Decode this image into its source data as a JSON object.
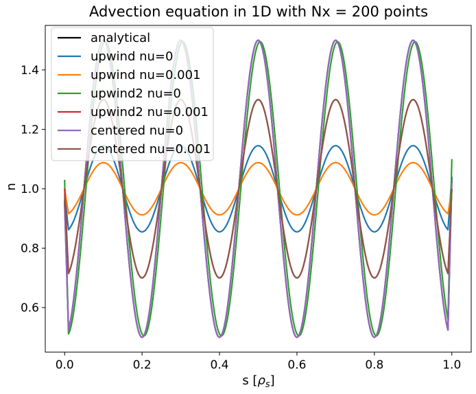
{
  "chart_data": {
    "type": "line",
    "title": "Advection equation in 1D with Nx = 200 points",
    "xlabel_main": "s [",
    "xlabel_symbol": "ρ",
    "xlabel_sub": "s",
    "xlabel_end": "]",
    "ylabel": "n",
    "xlim": [
      -0.05,
      1.05
    ],
    "ylim": [
      0.45,
      1.55
    ],
    "xticks": [
      0.0,
      0.2,
      0.4,
      0.6,
      0.8,
      1.0
    ],
    "xtick_labels": [
      "0.0",
      "0.2",
      "0.4",
      "0.6",
      "0.8",
      "1.0"
    ],
    "yticks": [
      0.6,
      0.8,
      1.0,
      1.2,
      1.4
    ],
    "ytick_labels": [
      "0.6",
      "0.8",
      "1.0",
      "1.2",
      "1.4"
    ],
    "legend_position": "upper-left",
    "wave": {
      "x_start": 0.0,
      "x_end": 1.0,
      "wavelength": 0.2,
      "mean": 1.0
    },
    "series": [
      {
        "name": "analytical",
        "color": "#000000",
        "amplitude": 0.5,
        "phase": 0.0,
        "y_start": 0.96,
        "y_end": 1.04
      },
      {
        "name": "upwind nu=0",
        "color": "#1f77b4",
        "amplitude": 0.145,
        "phase": 0.0,
        "y_start": 0.98,
        "y_end": 1.04
      },
      {
        "name": "upwind nu=0.001",
        "color": "#ff7f0e",
        "amplitude": 0.088,
        "phase": 0.0,
        "y_start": 1.0,
        "y_end": 1.0
      },
      {
        "name": "upwind2 nu=0",
        "color": "#2ca02c",
        "amplitude": 0.495,
        "phase": 0.005,
        "y_start": 1.03,
        "y_end": 1.1
      },
      {
        "name": "upwind2 nu=0.001",
        "color": "#d62728",
        "amplitude": 0.3,
        "phase": 0.0,
        "y_start": 1.0,
        "y_end": 1.0
      },
      {
        "name": "centered nu=0",
        "color": "#9467bd",
        "amplitude": 0.5,
        "phase": 0.0,
        "y_start": 0.94,
        "y_end": 1.02
      },
      {
        "name": "centered nu=0.001",
        "color": "#8c564b",
        "amplitude": 0.3,
        "phase": 0.0,
        "y_start": 0.97,
        "y_end": 1.0
      }
    ]
  }
}
